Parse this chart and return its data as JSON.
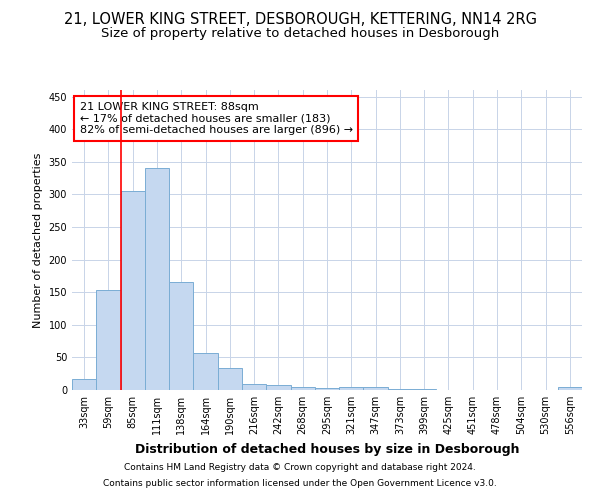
{
  "title1": "21, LOWER KING STREET, DESBOROUGH, KETTERING, NN14 2RG",
  "title2": "Size of property relative to detached houses in Desborough",
  "xlabel": "Distribution of detached houses by size in Desborough",
  "ylabel": "Number of detached properties",
  "footer1": "Contains HM Land Registry data © Crown copyright and database right 2024.",
  "footer2": "Contains public sector information licensed under the Open Government Licence v3.0.",
  "bins": [
    "33sqm",
    "59sqm",
    "85sqm",
    "111sqm",
    "138sqm",
    "164sqm",
    "190sqm",
    "216sqm",
    "242sqm",
    "268sqm",
    "295sqm",
    "321sqm",
    "347sqm",
    "373sqm",
    "399sqm",
    "425sqm",
    "451sqm",
    "478sqm",
    "504sqm",
    "530sqm",
    "556sqm"
  ],
  "bar_values": [
    17,
    153,
    305,
    340,
    165,
    57,
    33,
    9,
    7,
    5,
    3,
    5,
    5,
    2,
    1,
    0,
    0,
    0,
    0,
    0,
    4
  ],
  "bar_color": "#c5d8f0",
  "bar_edge_color": "#7aadd4",
  "grid_color": "#c8d4e8",
  "vline_color": "red",
  "vline_pos": 2.0,
  "annotation_line1": "21 LOWER KING STREET: 88sqm",
  "annotation_line2": "← 17% of detached houses are smaller (183)",
  "annotation_line3": "82% of semi-detached houses are larger (896) →",
  "ylim": [
    0,
    460
  ],
  "yticks": [
    0,
    50,
    100,
    150,
    200,
    250,
    300,
    350,
    400,
    450
  ],
  "title1_fontsize": 10.5,
  "title2_fontsize": 9.5,
  "xlabel_fontsize": 9,
  "ylabel_fontsize": 8,
  "tick_fontsize": 7,
  "footer_fontsize": 6.5,
  "ann_fontsize": 8
}
